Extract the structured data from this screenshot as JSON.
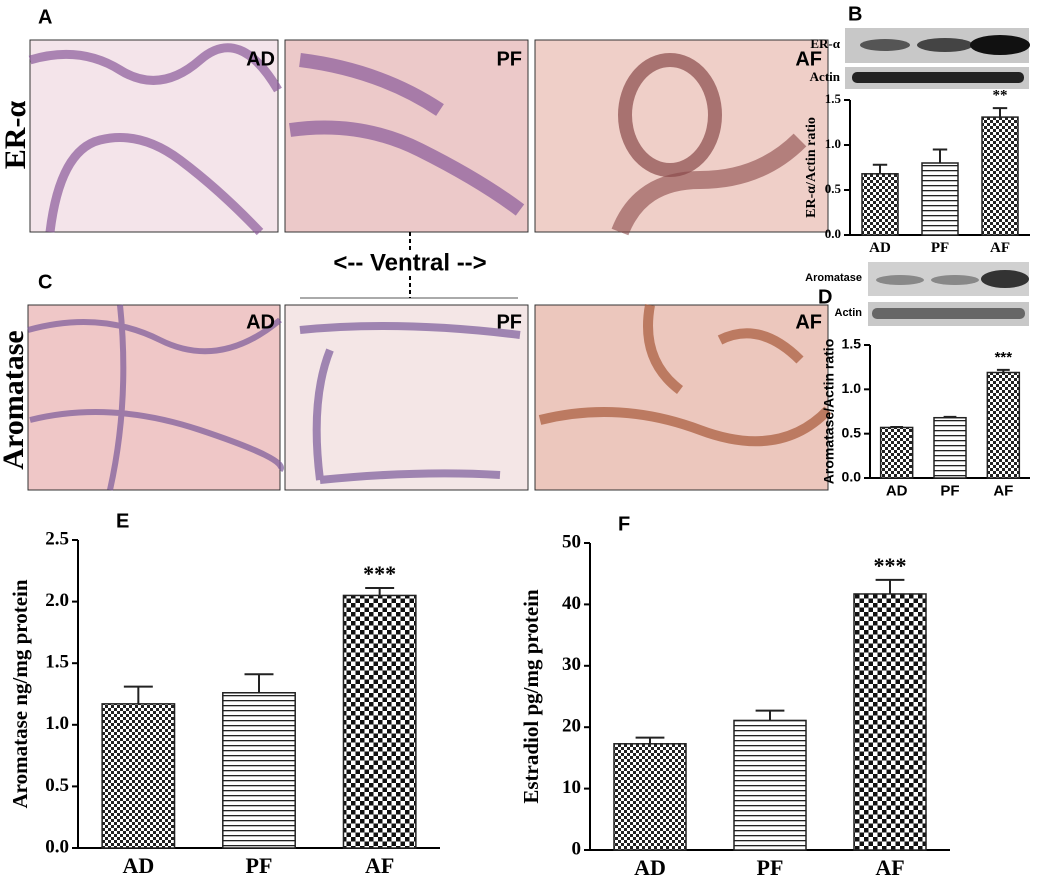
{
  "figure": {
    "panel_labels": [
      "A",
      "B",
      "C",
      "D",
      "E",
      "F"
    ],
    "row_labels": [
      "ER-α",
      "Aromatase"
    ],
    "image_labels": [
      "AD",
      "PF",
      "AF",
      "AD",
      "PF",
      "AF"
    ],
    "ventral": "<-- Ventral -->",
    "blot_labels": [
      "ER-α",
      "Actin",
      "Aromatase",
      "Actin"
    ]
  },
  "chart_data": [
    {
      "type": "bar",
      "ylabel": "ER-α/Actin ratio",
      "categories": [
        "AD",
        "PF",
        "AF"
      ],
      "values": [
        0.68,
        0.8,
        1.31
      ],
      "errors": [
        0.1,
        0.15,
        0.1
      ],
      "annotation": "**",
      "ylim": [
        0,
        1.5
      ],
      "yticks": [
        {
          "value": 0,
          "label": "0.0"
        },
        {
          "value": 0.5,
          "label": "0.5"
        },
        {
          "value": 1,
          "label": "1.0"
        },
        {
          "value": 1.5,
          "label": "1.5"
        }
      ],
      "color": "#222222"
    },
    {
      "type": "bar",
      "ylabel": "Aromatase/Actin ratio",
      "categories": [
        "AD",
        "PF",
        "AF"
      ],
      "values": [
        0.57,
        0.68,
        1.19
      ],
      "errors": [
        0.005,
        0.01,
        0.03
      ],
      "annotation": "***",
      "ylim": [
        0,
        1.5
      ],
      "yticks": [
        {
          "value": 0,
          "label": "0.0"
        },
        {
          "value": 0.5,
          "label": "0.5"
        },
        {
          "value": 1,
          "label": "1.0"
        },
        {
          "value": 1.5,
          "label": "1.5"
        }
      ],
      "color": "#222222"
    },
    {
      "type": "bar",
      "ylabel": "Aromatase ng/mg protein",
      "categories": [
        "AD",
        "PF",
        "AF"
      ],
      "values": [
        1.17,
        1.26,
        2.05
      ],
      "errors": [
        0.14,
        0.15,
        0.06
      ],
      "annotation": "***",
      "ylim": [
        0,
        2.5
      ],
      "yticks": [
        {
          "value": 0,
          "label": "0.0"
        },
        {
          "value": 0.5,
          "label": "0.5"
        },
        {
          "value": 1,
          "label": "1.0"
        },
        {
          "value": 1.5,
          "label": "1.5"
        },
        {
          "value": 2,
          "label": "2.0"
        },
        {
          "value": 2.5,
          "label": "2.5"
        }
      ],
      "color": "#222222"
    },
    {
      "type": "bar",
      "ylabel": "Estradiol pg/mg protein",
      "categories": [
        "AD",
        "PF",
        "AF"
      ],
      "values": [
        17.3,
        21.1,
        41.7
      ],
      "errors": [
        1.0,
        1.6,
        2.3
      ],
      "annotation": "***",
      "ylim": [
        0,
        50
      ],
      "yticks": [
        0,
        10,
        20,
        30,
        40,
        50
      ],
      "color": "#222222"
    }
  ]
}
